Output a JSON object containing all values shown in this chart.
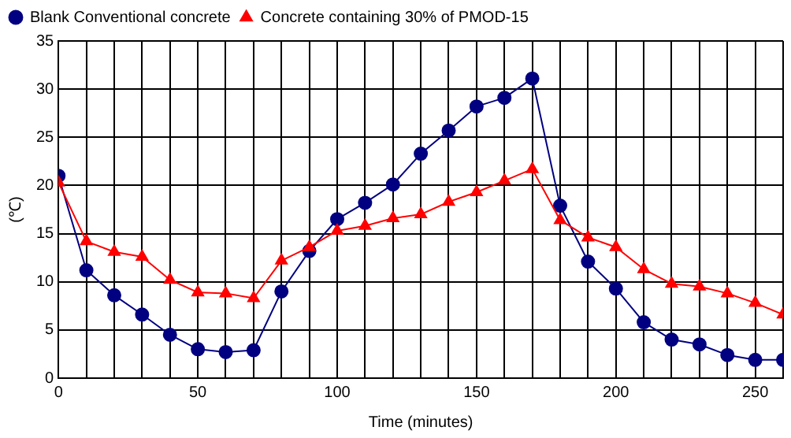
{
  "chart_data": {
    "type": "line",
    "xlabel": "Time (minutes)",
    "ylabel": "(℃)",
    "x": [
      0,
      10,
      20,
      30,
      40,
      50,
      60,
      70,
      80,
      90,
      100,
      110,
      120,
      130,
      140,
      150,
      160,
      170,
      180,
      190,
      200,
      210,
      220,
      230,
      240,
      250,
      260
    ],
    "series": [
      {
        "name": "Blank Conventional concrete",
        "color": "#000080",
        "marker": "circle",
        "values": [
          21,
          11.2,
          8.6,
          6.6,
          4.5,
          3.0,
          2.7,
          2.9,
          9.0,
          13.2,
          16.5,
          18.2,
          20.1,
          23.3,
          25.7,
          28.2,
          29.1,
          31.1,
          17.9,
          12.1,
          9.3,
          5.8,
          4.0,
          3.5,
          2.4,
          1.9,
          1.9
        ]
      },
      {
        "name": "Concrete containing 30% of PMOD-15",
        "color": "#ff0000",
        "marker": "triangle",
        "values": [
          20.3,
          14.2,
          13.1,
          12.6,
          10.2,
          8.9,
          8.8,
          8.3,
          12.2,
          13.6,
          15.3,
          15.8,
          16.6,
          17.0,
          18.3,
          19.3,
          20.5,
          21.7,
          16.4,
          14.6,
          13.6,
          11.3,
          9.8,
          9.5,
          8.8,
          7.8,
          6.6
        ]
      }
    ],
    "xlim": [
      0,
      260
    ],
    "xticks": [
      0,
      {
        "value": 10,
        "label": null
      },
      {
        "value": 20,
        "label": null
      },
      {
        "value": 30,
        "label": null
      },
      {
        "value": 40,
        "label": null
      },
      50,
      {
        "value": 60,
        "label": null
      },
      {
        "value": 70,
        "label": null
      },
      {
        "value": 80,
        "label": null
      },
      {
        "value": 90,
        "label": null
      },
      100,
      {
        "value": 110,
        "label": null
      },
      {
        "value": 120,
        "label": null
      },
      {
        "value": 130,
        "label": null
      },
      {
        "value": 140,
        "label": null
      },
      150,
      {
        "value": 160,
        "label": null
      },
      {
        "value": 170,
        "label": null
      },
      {
        "value": 180,
        "label": null
      },
      {
        "value": 190,
        "label": null
      },
      200,
      {
        "value": 210,
        "label": null
      },
      {
        "value": 220,
        "label": null
      },
      {
        "value": 230,
        "label": null
      },
      {
        "value": 240,
        "label": null
      },
      250,
      {
        "value": 260,
        "label": null
      }
    ],
    "ylim": [
      0,
      35
    ],
    "yticks": [
      0,
      5,
      10,
      15,
      20,
      25,
      30,
      35
    ],
    "grid": true,
    "legend": "top left",
    "line_style": "solid"
  }
}
